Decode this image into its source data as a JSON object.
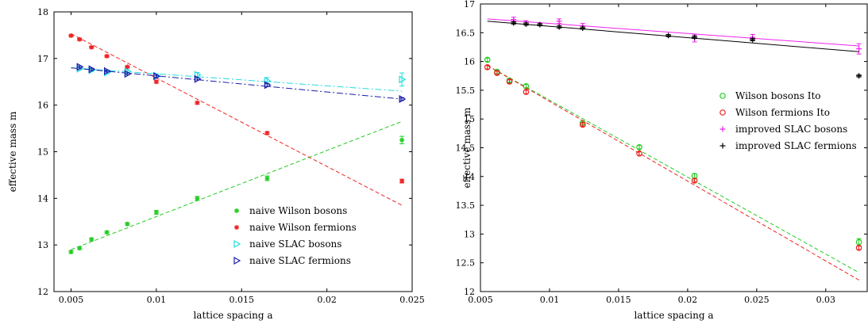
{
  "chart_data": [
    {
      "type": "scatter",
      "xlabel": "lattice spacing a",
      "ylabel": "effective mass m",
      "xlim": [
        0.004,
        0.025
      ],
      "ylim": [
        12,
        18
      ],
      "xticks": [
        "0.005",
        "0.01",
        "0.015",
        "0.02",
        "0.025"
      ],
      "xtick_values": [
        0.005,
        0.01,
        0.015,
        0.02,
        0.025
      ],
      "yticks": [
        "12",
        "13",
        "14",
        "15",
        "16",
        "17",
        "18"
      ],
      "ytick_values": [
        12,
        13,
        14,
        15,
        16,
        17,
        18
      ],
      "legend_position": "bottom-right",
      "series": [
        {
          "name": "naive Wilson bosons",
          "color": "#22cc22",
          "marker": "asterisk",
          "x": [
            0.005,
            0.0055,
            0.0062,
            0.0071,
            0.0083,
            0.01,
            0.0124,
            0.0165,
            0.0244
          ],
          "y": [
            12.85,
            12.93,
            13.12,
            13.27,
            13.45,
            13.7,
            14.0,
            14.43,
            15.25
          ],
          "err": [
            0.03,
            0.03,
            0.03,
            0.03,
            0.03,
            0.04,
            0.04,
            0.05,
            0.08
          ],
          "fit": {
            "x": [
              0.005,
              0.0244
            ],
            "y": [
              12.9,
              15.65
            ]
          }
        },
        {
          "name": "naive Wilson fermions",
          "color": "#ee2222",
          "marker": "asterisk",
          "x": [
            0.005,
            0.0055,
            0.0062,
            0.0071,
            0.0083,
            0.01,
            0.0124,
            0.0165,
            0.0244
          ],
          "y": [
            17.49,
            17.41,
            17.24,
            17.05,
            16.82,
            16.5,
            16.05,
            15.4,
            14.37
          ],
          "err": [
            0.02,
            0.02,
            0.02,
            0.02,
            0.02,
            0.03,
            0.03,
            0.03,
            0.04
          ],
          "fit": {
            "x": [
              0.005,
              0.0244
            ],
            "y": [
              17.53,
              13.85
            ]
          }
        },
        {
          "name": "naive SLAC bosons",
          "color": "#22dddd",
          "marker": "triangle-right",
          "x": [
            0.0055,
            0.0062,
            0.0071,
            0.0083,
            0.01,
            0.0124,
            0.0165,
            0.0244
          ],
          "y": [
            16.78,
            16.75,
            16.7,
            16.72,
            16.63,
            16.65,
            16.52,
            16.55
          ],
          "err": [
            0.03,
            0.03,
            0.03,
            0.04,
            0.04,
            0.05,
            0.07,
            0.14
          ],
          "fit": {
            "x": [
              0.005,
              0.0244
            ],
            "y": [
              16.8,
              16.3
            ]
          }
        },
        {
          "name": "naive SLAC fermions",
          "color": "#1a1aaa",
          "marker": "triangle-right",
          "x": [
            0.0055,
            0.0062,
            0.0071,
            0.0083,
            0.01,
            0.0124,
            0.0165,
            0.0244
          ],
          "y": [
            16.82,
            16.77,
            16.73,
            16.67,
            16.62,
            16.56,
            16.43,
            16.13
          ],
          "err": [
            0.02,
            0.02,
            0.02,
            0.02,
            0.02,
            0.02,
            0.03,
            0.03
          ],
          "fit": {
            "x": [
              0.005,
              0.0244
            ],
            "y": [
              16.8,
              16.13
            ]
          }
        }
      ]
    },
    {
      "type": "scatter",
      "xlabel": "lattice spacing a",
      "ylabel": "effective mass m",
      "xlim": [
        0.005,
        0.033
      ],
      "ylim": [
        12,
        17
      ],
      "xticks": [
        "0.005",
        "0.01",
        "0.015",
        "0.02",
        "0.025",
        "0.03"
      ],
      "xtick_values": [
        0.005,
        0.01,
        0.015,
        0.02,
        0.025,
        0.03
      ],
      "yticks": [
        "12",
        "12.5",
        "13",
        "13.5",
        "14",
        "14.5",
        "15",
        "15.5",
        "16",
        "16.5",
        "17"
      ],
      "ytick_values": [
        12,
        12.5,
        13,
        13.5,
        14,
        14.5,
        15,
        15.5,
        16,
        16.5,
        17
      ],
      "legend_position": "right",
      "series": [
        {
          "name": "Wilson bosons Ito",
          "color": "#22cc22",
          "marker": "circle",
          "x": [
            0.0055,
            0.0062,
            0.0071,
            0.0083,
            0.0124,
            0.0165,
            0.0205,
            0.0324
          ],
          "y": [
            16.03,
            15.82,
            15.67,
            15.57,
            14.93,
            14.51,
            14.01,
            12.86
          ],
          "err": [
            0.03,
            0.03,
            0.03,
            0.03,
            0.03,
            0.03,
            0.04,
            0.06
          ],
          "fit": {
            "x": [
              0.0055,
              0.0324
            ],
            "y": [
              15.93,
              12.33
            ]
          }
        },
        {
          "name": "Wilson fermions Ito",
          "color": "#ee2222",
          "marker": "circle",
          "x": [
            0.0055,
            0.0062,
            0.0071,
            0.0083,
            0.0124,
            0.0165,
            0.0205,
            0.0324
          ],
          "y": [
            15.9,
            15.8,
            15.65,
            15.47,
            14.9,
            14.4,
            13.93,
            12.76
          ],
          "err": [
            0.03,
            0.03,
            0.03,
            0.03,
            0.03,
            0.03,
            0.03,
            0.03
          ],
          "fit": {
            "x": [
              0.0055,
              0.0324
            ],
            "y": [
              15.93,
              12.2
            ]
          }
        },
        {
          "name": "improved SLAC bosons",
          "color": "#ee22ee",
          "marker": "plus",
          "x": [
            0.0074,
            0.0083,
            0.0107,
            0.0124,
            0.0205,
            0.0247,
            0.0324
          ],
          "y": [
            16.73,
            16.67,
            16.7,
            16.62,
            16.4,
            16.42,
            16.22
          ],
          "err": [
            0.04,
            0.04,
            0.04,
            0.04,
            0.06,
            0.05,
            0.09
          ],
          "fit": {
            "x": [
              0.0055,
              0.0324
            ],
            "y": [
              16.74,
              16.27
            ]
          }
        },
        {
          "name": "improved SLAC fermions",
          "color": "#000000",
          "marker": "plus",
          "x": [
            0.0074,
            0.0083,
            0.0093,
            0.0107,
            0.0124,
            0.0186,
            0.0205,
            0.0247,
            0.0324
          ],
          "y": [
            16.67,
            16.65,
            16.64,
            16.6,
            16.58,
            16.45,
            16.42,
            16.38,
            15.75
          ],
          "err": [
            0.02,
            0.02,
            0.02,
            0.02,
            0.02,
            0.02,
            0.02,
            0.02,
            0.02
          ],
          "fit": {
            "x": [
              0.0055,
              0.0324
            ],
            "y": [
              16.7,
              16.17
            ]
          }
        }
      ]
    }
  ]
}
